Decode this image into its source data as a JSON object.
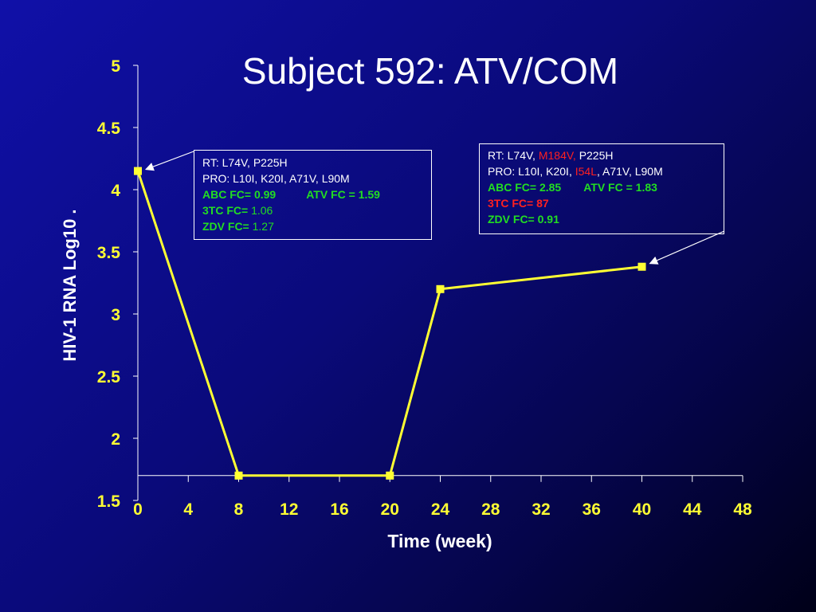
{
  "chart_data": {
    "type": "line",
    "title": "Subject 592:  ATV/COM",
    "xlabel": "Time (week)",
    "ylabel": "HIV-1 RNA Log10 .",
    "xlim": [
      0,
      48
    ],
    "ylim": [
      1.5,
      5
    ],
    "x_ticks": [
      0,
      4,
      8,
      12,
      16,
      20,
      24,
      28,
      32,
      36,
      40,
      44,
      48
    ],
    "y_ticks": [
      "1.5",
      "2",
      "2.5",
      "3",
      "3.5",
      "4",
      "4.5",
      "5"
    ],
    "series": [
      {
        "x": [
          0,
          8,
          20,
          24,
          40
        ],
        "y": [
          4.15,
          1.7,
          1.7,
          3.2,
          3.38
        ]
      }
    ],
    "colors": {
      "line": "#ffff33",
      "axis": "#ffffff",
      "tick_labels": "#ffff33"
    },
    "grid": false,
    "legend": "none"
  },
  "annotations": {
    "left": {
      "rt": "RT: L74V, P225H",
      "pro": "PRO: L10I, K20I, A71V, L90M",
      "abc": "ABC FC= 0.99",
      "atv": "ATV  FC = 1.59",
      "tc_label": "3TC  FC=",
      "tc_value": "1.06",
      "zdv_label": "ZDV  FC=",
      "zdv_value": "1.27"
    },
    "right": {
      "rt_a": "RT: L74V,",
      "rt_b": "M184V,",
      "rt_c": "P225H",
      "pro_a": "PRO: L10I, K20I,",
      "pro_b": "I54L",
      "pro_c": ", A71V, L90M",
      "abc": "ABC  FC= 2.85",
      "atv": "ATV  FC =  1.83",
      "tc": "3TC  FC=  87",
      "zdv": "ZDV  FC= 0.91"
    }
  }
}
